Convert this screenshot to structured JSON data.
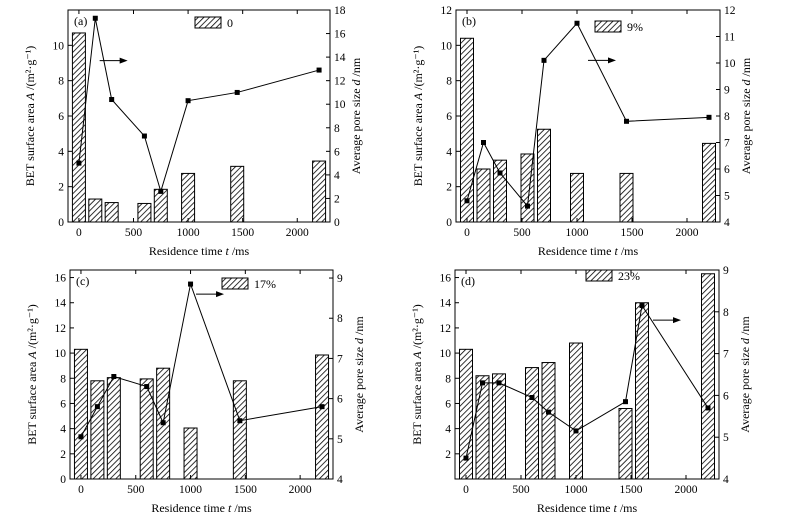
{
  "chart_data": [
    {
      "type": "bar+line",
      "panel_label": "(a)",
      "legend": "0",
      "xlabel": "Residence time  t /ms",
      "ylabel_left": "BET surface area  A /(m²·g⁻¹)",
      "ylabel_right": "Average pore size  d /nm",
      "xlim": [
        -100,
        2300
      ],
      "ylim": [
        0,
        12
      ],
      "y2lim": [
        0,
        18
      ],
      "xticks": [
        0,
        500,
        1000,
        1500,
        2000
      ],
      "yticks": [
        0,
        2,
        4,
        6,
        8,
        10
      ],
      "y2ticks": [
        0,
        2,
        4,
        6,
        8,
        10,
        12,
        14,
        16,
        18
      ],
      "bars": {
        "x": [
          0,
          150,
          300,
          600,
          750,
          1000,
          1450,
          2200
        ],
        "values": [
          10.7,
          1.3,
          1.1,
          1.05,
          1.85,
          2.75,
          3.15,
          3.45
        ]
      },
      "line": {
        "x": [
          0,
          150,
          300,
          600,
          750,
          1000,
          1450,
          2200
        ],
        "values": [
          5.0,
          17.3,
          10.4,
          7.3,
          2.6,
          10.3,
          11.0,
          12.9
        ]
      },
      "arrow": {
        "at_x": 190,
        "y2": 13.7,
        "direction": "right"
      }
    },
    {
      "type": "bar+line",
      "panel_label": "(b)",
      "legend": "9%",
      "xlabel": "Residence time  t /ms",
      "ylabel_left": "BET surface area  A /(m²·g⁻¹)",
      "ylabel_right": "Average pore size  d /nm",
      "xlim": [
        -100,
        2300
      ],
      "ylim": [
        0,
        12
      ],
      "y2lim": [
        4,
        12
      ],
      "xticks": [
        0,
        500,
        1000,
        1500,
        2000
      ],
      "yticks": [
        0,
        2,
        4,
        6,
        8,
        10,
        12
      ],
      "y2ticks": [
        4,
        5,
        6,
        7,
        8,
        9,
        10,
        11,
        12
      ],
      "bars": {
        "x": [
          0,
          150,
          300,
          550,
          700,
          1000,
          1450,
          2200
        ],
        "values": [
          10.4,
          3.0,
          3.5,
          3.85,
          5.25,
          2.75,
          2.75,
          4.45
        ]
      },
      "line": {
        "x": [
          0,
          150,
          300,
          550,
          700,
          1000,
          1450,
          2200
        ],
        "values": [
          4.8,
          7.0,
          5.85,
          4.6,
          10.1,
          11.5,
          7.8,
          7.95
        ]
      },
      "arrow": {
        "at_x": 1100,
        "y2": 10.1,
        "direction": "right"
      }
    },
    {
      "type": "bar+line",
      "panel_label": "(c)",
      "legend": "17%",
      "xlabel": "Residence time  t /ms",
      "ylabel_left": "BET surface area  A /(m²·g⁻¹)",
      "ylabel_right": "Average pore size  d /nm",
      "xlim": [
        -100,
        2300
      ],
      "ylim": [
        0,
        16.6
      ],
      "y2lim": [
        4,
        9.2
      ],
      "xticks": [
        0,
        500,
        1000,
        1500,
        2000
      ],
      "yticks": [
        0,
        2,
        4,
        6,
        8,
        10,
        12,
        14,
        16
      ],
      "y2ticks": [
        4,
        5,
        6,
        7,
        8,
        9
      ],
      "bars": {
        "x": [
          0,
          150,
          300,
          600,
          750,
          1000,
          1450,
          2200
        ],
        "values": [
          10.3,
          7.8,
          8.05,
          7.95,
          8.8,
          4.05,
          7.8,
          9.85
        ]
      },
      "line": {
        "x": [
          0,
          150,
          300,
          600,
          750,
          1000,
          1450,
          2200
        ],
        "values": [
          5.05,
          5.8,
          6.55,
          6.3,
          5.4,
          8.85,
          5.45,
          5.8
        ]
      },
      "arrow": {
        "at_x": 1050,
        "y2": 8.6,
        "direction": "right"
      }
    },
    {
      "type": "bar+line",
      "panel_label": "(d)",
      "legend": "23%",
      "xlabel": "Residence time  t /ms",
      "ylabel_left": "BET surface area  A /(m²·g⁻¹)",
      "ylabel_right": "Average pore size  d /nm",
      "xlim": [
        -100,
        2300
      ],
      "ylim": [
        0,
        16.6
      ],
      "y2lim": [
        4,
        9
      ],
      "xticks": [
        0,
        500,
        1000,
        1500,
        2000
      ],
      "yticks": [
        2,
        4,
        6,
        8,
        10,
        12,
        14,
        16
      ],
      "y2ticks": [
        4,
        5,
        6,
        7,
        8,
        9
      ],
      "bars": {
        "x": [
          0,
          150,
          300,
          600,
          750,
          1000,
          1450,
          1600,
          2200
        ],
        "values": [
          10.3,
          8.2,
          8.35,
          8.85,
          9.25,
          10.8,
          5.6,
          14.0,
          16.3
        ]
      },
      "line": {
        "x": [
          0,
          150,
          300,
          600,
          750,
          1000,
          1450,
          1600,
          2200
        ],
        "values": [
          4.5,
          6.3,
          6.3,
          5.95,
          5.6,
          5.15,
          5.85,
          8.15,
          5.7
        ]
      },
      "arrow": {
        "at_x": 1700,
        "y2": 7.8,
        "direction": "right"
      }
    }
  ]
}
